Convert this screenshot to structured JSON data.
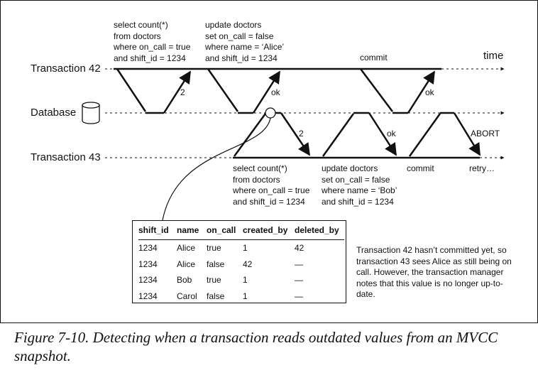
{
  "lanes": {
    "tx42": "Transaction 42",
    "db": "Database",
    "tx43": "Transaction 43",
    "time": "time"
  },
  "tx42_ops": {
    "read": [
      "select count(*)",
      "from doctors",
      "where on_call = true",
      "and shift_id = 1234"
    ],
    "update": [
      "update doctors",
      "set on_call = false",
      "where name = ‘Alice’",
      "and shift_id = 1234"
    ],
    "commit": "commit"
  },
  "tx43_ops": {
    "read": [
      "select count(*)",
      "from doctors",
      "where on_call = true",
      "and shift_id = 1234"
    ],
    "update": [
      "update doctors",
      "set on_call = false",
      "where name = ‘Bob’",
      "and shift_id = 1234"
    ],
    "commit": "commit",
    "retry": "retry…"
  },
  "responses": {
    "tx42_count": "2",
    "tx42_update_ok": "ok",
    "tx42_commit_ok": "ok",
    "tx43_count": "2",
    "tx43_update_ok": "ok",
    "tx43_abort": "ABORT"
  },
  "table": {
    "headers": [
      "shift_id",
      "name",
      "on_call",
      "created_by",
      "deleted_by"
    ],
    "rows": [
      [
        "1234",
        "Alice",
        "true",
        "1",
        "42"
      ],
      [
        "1234",
        "Alice",
        "false",
        "42",
        "—"
      ],
      [
        "1234",
        "Bob",
        "true",
        "1",
        "—"
      ],
      [
        "1234",
        "Carol",
        "false",
        "1",
        "—"
      ]
    ]
  },
  "side_note": "Transaction 42 hasn’t committed yet, so transaction 43 sees Alice as still being on call. However, the transaction manager notes that this value is no longer up-to-date.",
  "caption": "Figure 7-10. Detecting when a transaction reads outdated values from an MVCC snapshot."
}
